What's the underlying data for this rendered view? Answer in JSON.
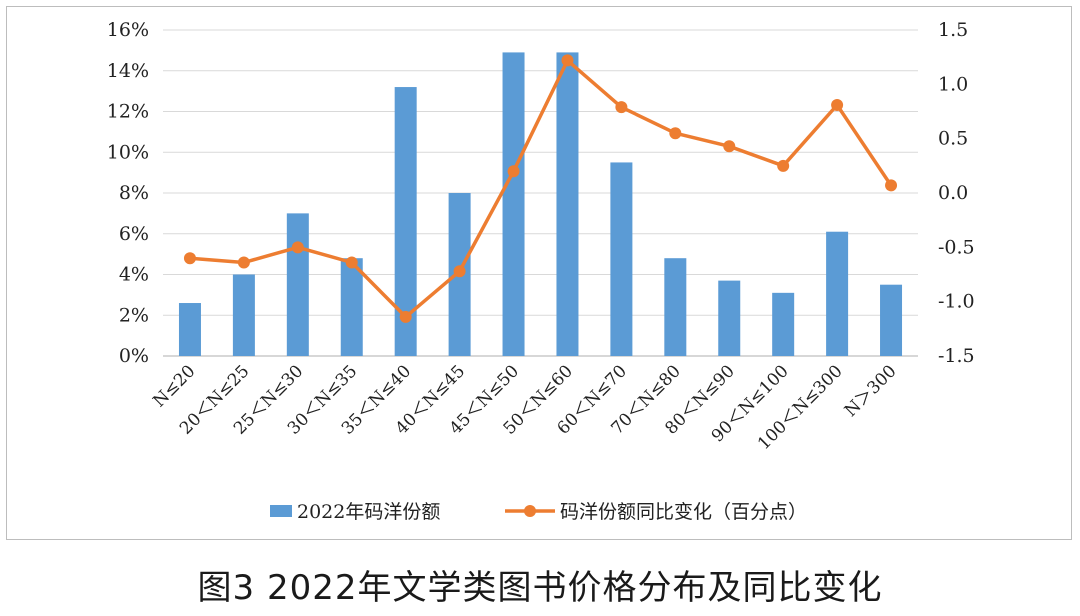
{
  "caption": "图3 2022年文学类图书价格分布及同比变化",
  "colors": {
    "bar": "#5b9bd5",
    "line": "#ed7d31",
    "grid": "#d9d9d9",
    "axis": "#bfbfbf"
  },
  "chart_data": {
    "type": "bar+line",
    "categories": [
      "N≤20",
      "20＜N≤25",
      "25＜N≤30",
      "30＜N≤35",
      "35＜N≤40",
      "40＜N≤45",
      "45＜N≤50",
      "50＜N≤60",
      "60＜N≤70",
      "70＜N≤80",
      "80＜N≤90",
      "90＜N≤100",
      "100＜N≤300",
      "N＞300"
    ],
    "series": [
      {
        "name": "2022年码洋份额",
        "type": "bar",
        "axis": "left",
        "values": [
          2.6,
          4.0,
          7.0,
          4.8,
          13.2,
          8.0,
          14.9,
          14.9,
          9.5,
          4.8,
          3.7,
          3.1,
          6.1,
          3.5
        ]
      },
      {
        "name": "码洋份额同比变化（百分点）",
        "type": "line",
        "axis": "right",
        "values": [
          -0.6,
          -0.64,
          -0.5,
          -0.64,
          -1.14,
          -0.72,
          0.2,
          1.22,
          0.79,
          0.55,
          0.43,
          0.25,
          0.81,
          0.07
        ]
      }
    ],
    "yleft": {
      "min": 0,
      "max": 16,
      "ticks": [
        "0%",
        "2%",
        "4%",
        "6%",
        "8%",
        "10%",
        "12%",
        "14%",
        "16%"
      ]
    },
    "yright": {
      "min": -1.5,
      "max": 1.5,
      "ticks": [
        "-1.5",
        "-1.0",
        "-0.5",
        "0.0",
        "0.5",
        "1.0",
        "1.5"
      ]
    },
    "grid": true,
    "legend_position": "bottom"
  }
}
